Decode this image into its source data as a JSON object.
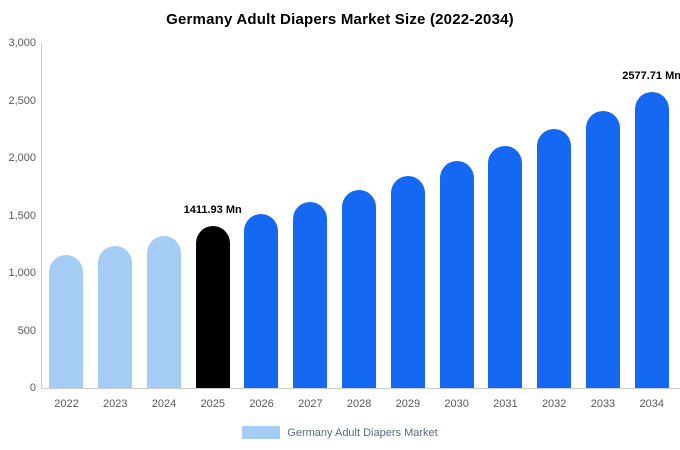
{
  "chart_data": {
    "type": "bar",
    "title": "Germany Adult Diapers Market Size (2022-2034)",
    "categories": [
      "2022",
      "2023",
      "2024",
      "2025",
      "2026",
      "2027",
      "2028",
      "2029",
      "2030",
      "2031",
      "2032",
      "2033",
      "2034"
    ],
    "values": [
      1155,
      1235,
      1320,
      1411.93,
      1510,
      1614,
      1726,
      1845,
      1972,
      2108,
      2254,
      2410,
      2577.71
    ],
    "bar_colors": [
      "light",
      "light",
      "light",
      "black",
      "blue",
      "blue",
      "blue",
      "blue",
      "blue",
      "blue",
      "blue",
      "blue",
      "blue"
    ],
    "colors": {
      "light": "#A5CCF5",
      "black": "#000000",
      "blue": "#1468F2"
    },
    "annotations": [
      {
        "index": 3,
        "text": "1411.93 Mn"
      },
      {
        "index": 12,
        "text": "2577.71 Mn"
      }
    ],
    "xlabel": "",
    "ylabel": "",
    "ylim": [
      0,
      3000
    ],
    "yticks": [
      0,
      500,
      1000,
      1500,
      2000,
      2500,
      3000
    ],
    "ytick_labels": [
      "0",
      "500",
      "1,000",
      "1,500",
      "2,000",
      "2,500",
      "3,000"
    ],
    "grid": false,
    "legend": {
      "position": "bottom",
      "label": "Germany Adult Diapers Market",
      "swatch_color": "#A5CCF5"
    }
  }
}
